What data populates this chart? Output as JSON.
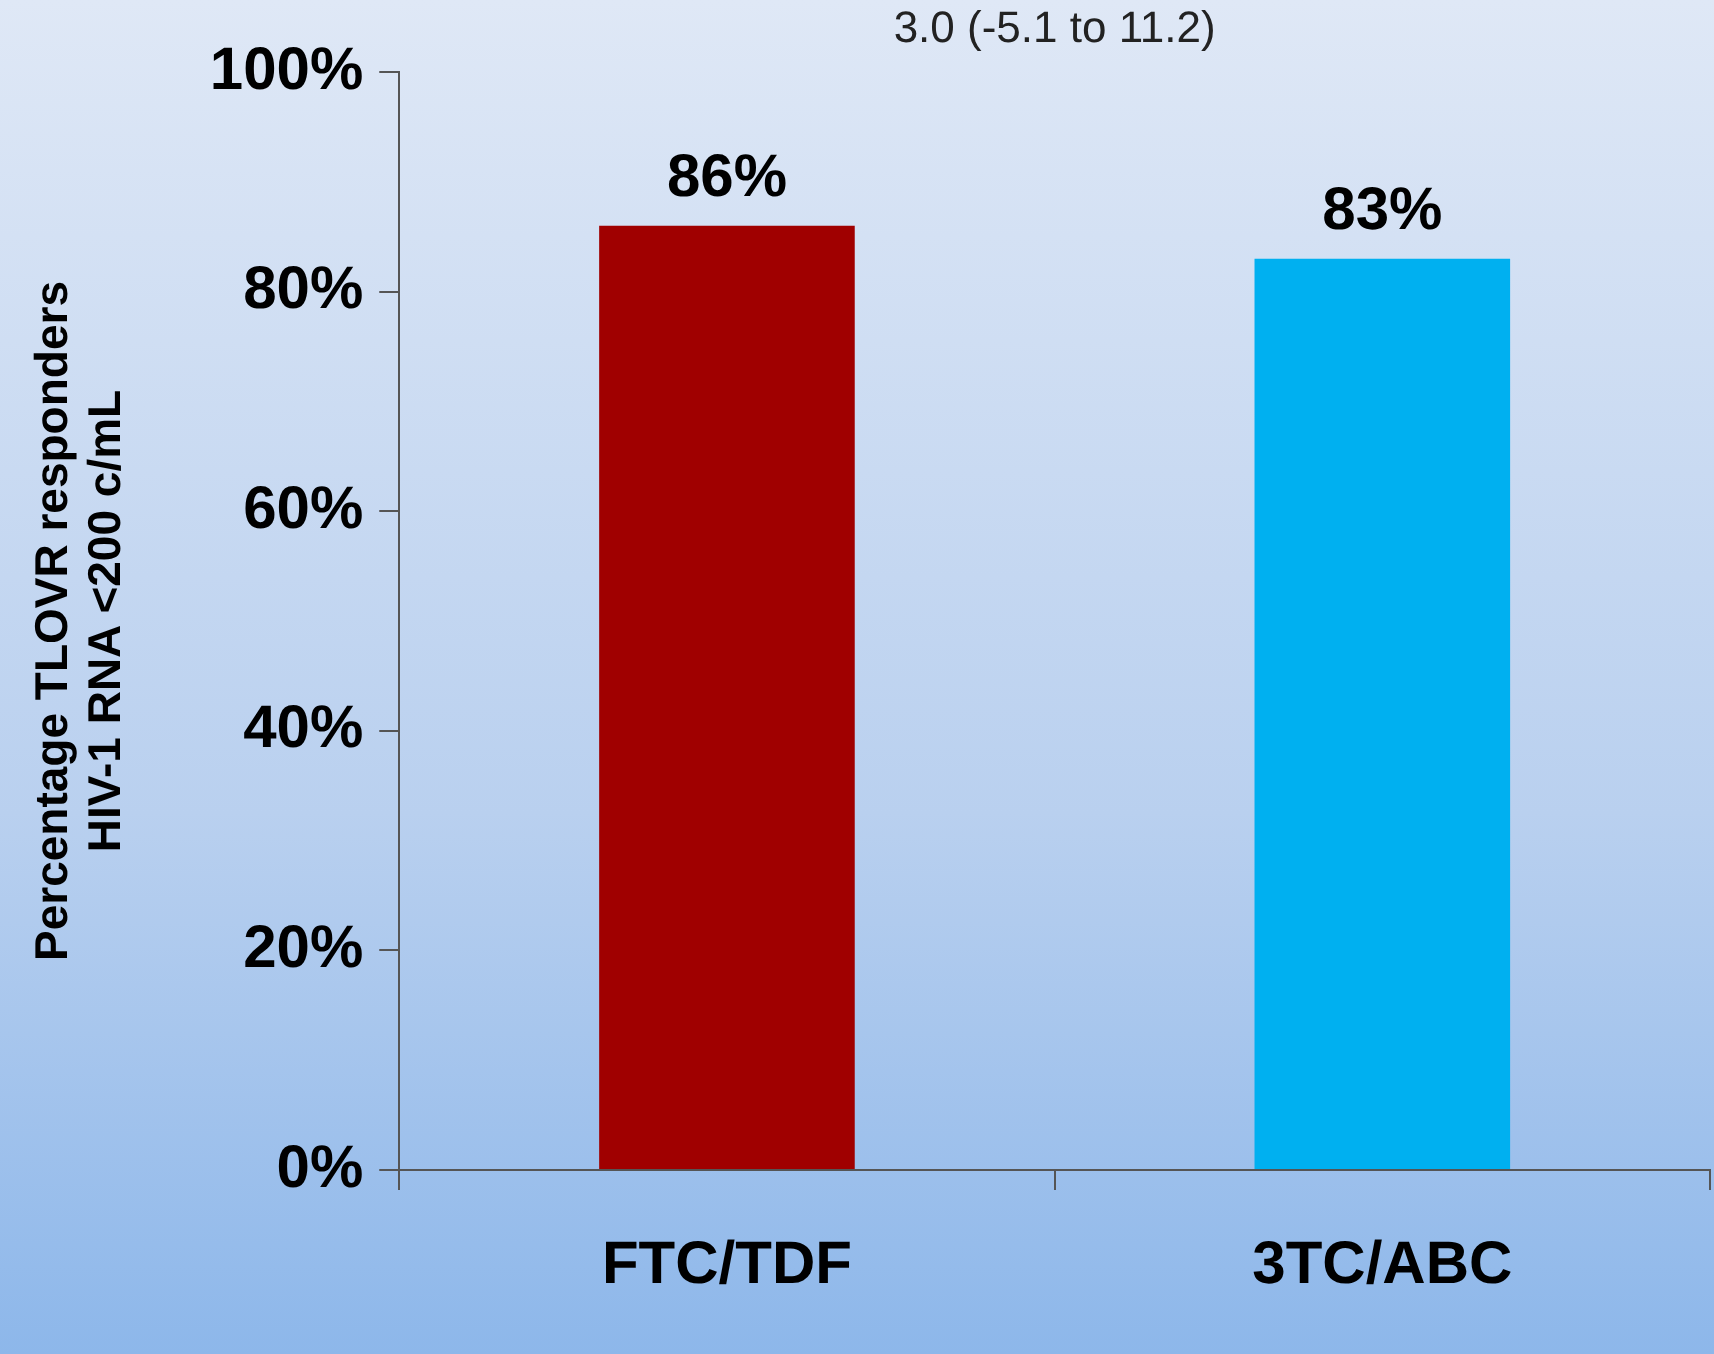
{
  "chart_data": {
    "type": "bar",
    "ylabel": "Percentage TLOVR responders\nHIV-1 RNA <200 c/mL",
    "annotations": [
      "3.0 (-5.1 to 11.2)"
    ],
    "categories": [
      "FTC/TDF",
      "3TC/ABC"
    ],
    "values": [
      86,
      83
    ],
    "colors": [
      "#a00000",
      "#00b0f0"
    ],
    "value_labels": [
      "86%",
      "83%"
    ],
    "ylim": [
      0,
      100
    ],
    "yticks": [
      {
        "value": 0,
        "label": "0%"
      },
      {
        "value": 20,
        "label": "20%"
      },
      {
        "value": 40,
        "label": "40%"
      },
      {
        "value": 60,
        "label": "60%"
      },
      {
        "value": 80,
        "label": "80%"
      },
      {
        "value": 100,
        "label": "100%"
      }
    ],
    "grid": false,
    "legend": false
  }
}
